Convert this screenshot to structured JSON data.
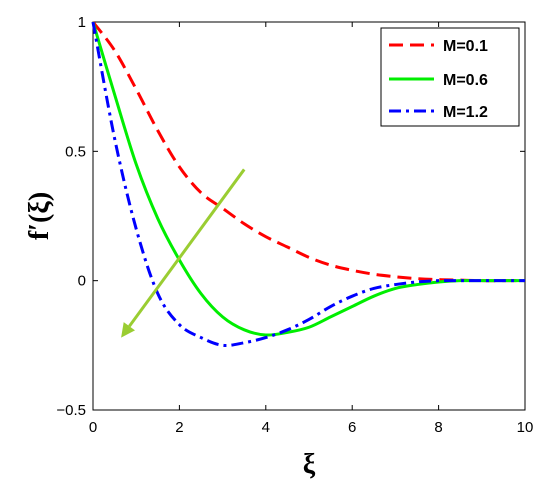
{
  "chart_data": {
    "type": "line",
    "xlabel": "ξ",
    "ylabel": "f′(ξ)",
    "xlim": [
      0,
      10
    ],
    "ylim": [
      -0.5,
      1
    ],
    "xticks": [
      "0",
      "2",
      "4",
      "6",
      "8",
      "10"
    ],
    "yticks": [
      "−0.5",
      "0",
      "0.5",
      "1"
    ],
    "grid": false,
    "legend_position": "top-right",
    "x": [
      0,
      0.5,
      1,
      1.5,
      2,
      2.5,
      3,
      3.5,
      4,
      4.5,
      5,
      5.5,
      6,
      6.5,
      7,
      7.5,
      8,
      8.5,
      9,
      9.5,
      10
    ],
    "series": [
      {
        "name": "M=0.1",
        "color": "#ff0000",
        "dash": "dashed",
        "values": [
          1.0,
          0.89,
          0.74,
          0.58,
          0.44,
          0.34,
          0.28,
          0.22,
          0.17,
          0.13,
          0.09,
          0.06,
          0.04,
          0.025,
          0.015,
          0.008,
          0.004,
          0.002,
          0.0,
          0.0,
          0.0
        ]
      },
      {
        "name": "M=0.6",
        "color": "#00ee00",
        "dash": "solid",
        "values": [
          1.0,
          0.72,
          0.45,
          0.24,
          0.08,
          -0.05,
          -0.14,
          -0.19,
          -0.21,
          -0.2,
          -0.18,
          -0.14,
          -0.1,
          -0.06,
          -0.03,
          -0.015,
          -0.005,
          0.0,
          0.0,
          0.0,
          0.0
        ]
      },
      {
        "name": "M=1.2",
        "color": "#0000ff",
        "dash": "dashdot",
        "values": [
          1.0,
          0.55,
          0.2,
          -0.05,
          -0.17,
          -0.22,
          -0.25,
          -0.24,
          -0.22,
          -0.19,
          -0.15,
          -0.1,
          -0.06,
          -0.03,
          -0.015,
          -0.005,
          0.0,
          0.0,
          0.0,
          0.0,
          0.0
        ]
      }
    ],
    "arrow": {
      "from": [
        3.5,
        0.43
      ],
      "to": [
        0.65,
        -0.22
      ],
      "color": "#9acd32"
    }
  }
}
